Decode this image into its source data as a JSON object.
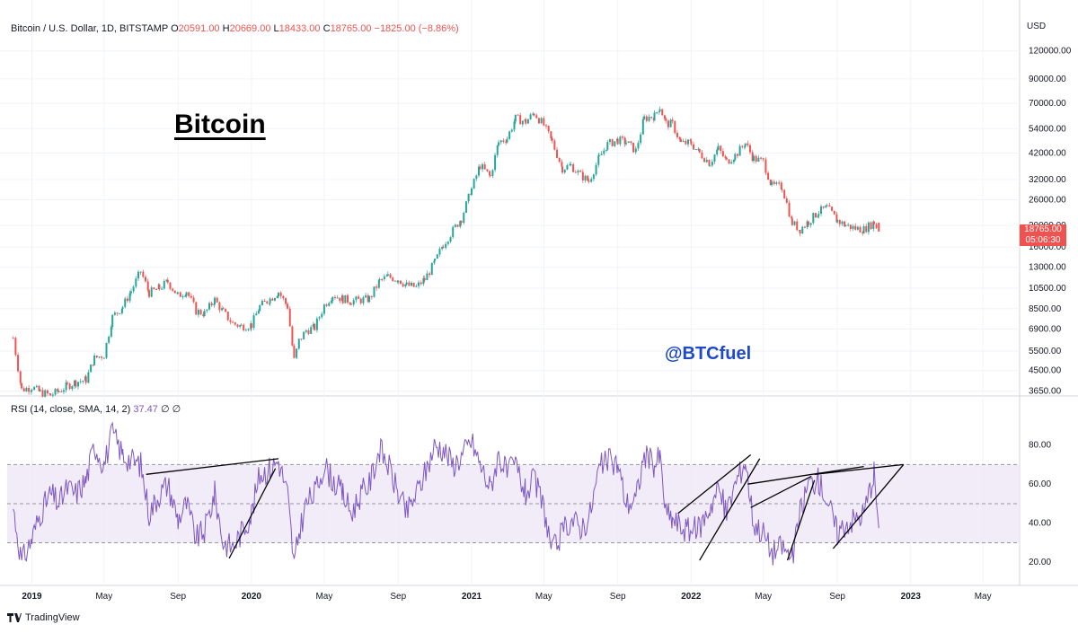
{
  "header": {
    "symbol": "Bitcoin / U.S. Dollar, 1D, BITSTAMP",
    "open_label": "O",
    "open": "20591.00",
    "high_label": "H",
    "high": "20669.00",
    "low_label": "L",
    "low": "18433.00",
    "close_label": "C",
    "close": "18765.00",
    "change": "−1825.00 (−8.86%)"
  },
  "annotations": {
    "title": "Bitcoin",
    "handle": "@BTCfuel"
  },
  "price_axis": {
    "currency": "USD",
    "ticks": [
      "120000.00",
      "90000.00",
      "70000.00",
      "54000.00",
      "42000.00",
      "32000.00",
      "26000.00",
      "20000.00",
      "16000.00",
      "13000.00",
      "10500.00",
      "8500.00",
      "6900.00",
      "5500.00",
      "4500.00",
      "3650.00"
    ],
    "last_price": "18765.00",
    "countdown": "05:06:30"
  },
  "rsi": {
    "label": "RSI (14, close, SMA, 14, 2)",
    "value": "37.47",
    "extra": "∅ ∅",
    "ticks": [
      "80.00",
      "60.00",
      "40.00",
      "20.00"
    ]
  },
  "time_axis": [
    "2019",
    "May",
    "Sep",
    "2020",
    "May",
    "Sep",
    "2021",
    "May",
    "Sep",
    "2022",
    "May",
    "Sep",
    "2023",
    "May"
  ],
  "branding": {
    "logo_text": "TradingView"
  },
  "colors": {
    "up": "#26a69a",
    "down": "#ef5350",
    "rsi_line": "#7e57c2",
    "rsi_band": "#ede7f6",
    "handle": "#1e4ac8"
  },
  "chart_data": [
    {
      "type": "candlestick",
      "scale": "log",
      "ylim": [
        3500,
        140000
      ],
      "x": [
        "2018-12-01",
        "2018-12-15",
        "2019-01-01",
        "2019-01-15",
        "2019-02-01",
        "2019-02-15",
        "2019-03-01",
        "2019-03-15",
        "2019-04-01",
        "2019-04-15",
        "2019-05-01",
        "2019-05-15",
        "2019-06-01",
        "2019-06-15",
        "2019-07-01",
        "2019-07-15",
        "2019-08-01",
        "2019-08-15",
        "2019-09-01",
        "2019-09-15",
        "2019-10-01",
        "2019-10-15",
        "2019-11-01",
        "2019-11-15",
        "2019-12-01",
        "2019-12-15",
        "2020-01-01",
        "2020-01-15",
        "2020-02-01",
        "2020-02-15",
        "2020-03-01",
        "2020-03-12",
        "2020-03-20",
        "2020-04-01",
        "2020-04-15",
        "2020-05-01",
        "2020-05-15",
        "2020-06-01",
        "2020-06-15",
        "2020-07-01",
        "2020-07-15",
        "2020-08-01",
        "2020-08-15",
        "2020-09-01",
        "2020-09-15",
        "2020-10-01",
        "2020-10-15",
        "2020-11-01",
        "2020-11-15",
        "2020-12-01",
        "2020-12-15",
        "2021-01-01",
        "2021-01-15",
        "2021-02-01",
        "2021-02-15",
        "2021-03-01",
        "2021-03-15",
        "2021-04-01",
        "2021-04-15",
        "2021-05-01",
        "2021-05-15",
        "2021-06-01",
        "2021-06-15",
        "2021-07-01",
        "2021-07-15",
        "2021-08-01",
        "2021-08-15",
        "2021-09-01",
        "2021-09-15",
        "2021-10-01",
        "2021-10-15",
        "2021-11-01",
        "2021-11-10",
        "2021-11-20",
        "2021-12-01",
        "2021-12-15",
        "2022-01-01",
        "2022-01-15",
        "2022-02-01",
        "2022-02-15",
        "2022-03-01",
        "2022-03-15",
        "2022-04-01",
        "2022-04-15",
        "2022-05-01",
        "2022-05-15",
        "2022-06-01",
        "2022-06-18",
        "2022-07-01",
        "2022-07-15",
        "2022-08-01",
        "2022-08-15",
        "2022-09-01",
        "2022-09-15",
        "2022-10-01",
        "2022-10-15",
        "2022-11-01",
        "2022-11-09"
      ],
      "y": [
        6300,
        3700,
        3800,
        3600,
        3500,
        3650,
        3850,
        4000,
        4100,
        5100,
        5300,
        7800,
        8700,
        10200,
        12500,
        10000,
        10500,
        11200,
        9700,
        10200,
        8300,
        8100,
        9300,
        8200,
        7300,
        7100,
        7200,
        8700,
        9400,
        10100,
        8700,
        5000,
        6100,
        6800,
        7000,
        8800,
        9800,
        9400,
        9200,
        9300,
        9400,
        11300,
        11800,
        11500,
        10800,
        10600,
        11500,
        13700,
        16500,
        19000,
        21500,
        29000,
        37000,
        33000,
        47000,
        49000,
        60000,
        58000,
        63500,
        56000,
        47000,
        36000,
        37000,
        33500,
        31500,
        40000,
        46000,
        48000,
        47000,
        43000,
        60000,
        61500,
        67500,
        57000,
        56500,
        46500,
        46500,
        42000,
        38000,
        44000,
        38500,
        41000,
        46500,
        39700,
        38500,
        30000,
        29800,
        20500,
        19200,
        20800,
        23000,
        24000,
        21000,
        20000,
        19400,
        19200,
        20600,
        18765
      ],
      "series": [
        {
          "name": "Bitcoin / U.S. Dollar",
          "values": "see y"
        }
      ]
    },
    {
      "type": "line",
      "title": "RSI (14, close, SMA, 14, 2)",
      "ylim": [
        10,
        95
      ],
      "bands": {
        "upper": 70,
        "middle": 50,
        "lower": 30
      },
      "x": [
        "2018-12-01",
        "2018-12-15",
        "2019-01-01",
        "2019-01-15",
        "2019-02-01",
        "2019-02-15",
        "2019-03-01",
        "2019-03-15",
        "2019-04-01",
        "2019-04-15",
        "2019-05-01",
        "2019-05-15",
        "2019-06-01",
        "2019-06-15",
        "2019-07-01",
        "2019-07-15",
        "2019-08-01",
        "2019-08-15",
        "2019-09-01",
        "2019-09-15",
        "2019-10-01",
        "2019-10-15",
        "2019-11-01",
        "2019-11-15",
        "2019-12-01",
        "2019-12-15",
        "2020-01-01",
        "2020-01-15",
        "2020-02-01",
        "2020-02-15",
        "2020-03-01",
        "2020-03-12",
        "2020-03-20",
        "2020-04-01",
        "2020-04-15",
        "2020-05-01",
        "2020-05-15",
        "2020-06-01",
        "2020-06-15",
        "2020-07-01",
        "2020-07-15",
        "2020-08-01",
        "2020-08-15",
        "2020-09-01",
        "2020-09-15",
        "2020-10-01",
        "2020-10-15",
        "2020-11-01",
        "2020-11-15",
        "2020-12-01",
        "2020-12-15",
        "2021-01-01",
        "2021-01-15",
        "2021-02-01",
        "2021-02-15",
        "2021-03-01",
        "2021-03-15",
        "2021-04-01",
        "2021-04-15",
        "2021-05-01",
        "2021-05-15",
        "2021-06-01",
        "2021-06-15",
        "2021-07-01",
        "2021-07-15",
        "2021-08-01",
        "2021-08-15",
        "2021-09-01",
        "2021-09-15",
        "2021-10-01",
        "2021-10-15",
        "2021-11-01",
        "2021-11-10",
        "2021-11-20",
        "2021-12-01",
        "2021-12-15",
        "2022-01-01",
        "2022-01-15",
        "2022-02-01",
        "2022-02-15",
        "2022-03-01",
        "2022-03-15",
        "2022-04-01",
        "2022-04-15",
        "2022-05-01",
        "2022-05-15",
        "2022-06-01",
        "2022-06-18",
        "2022-07-01",
        "2022-07-15",
        "2022-08-01",
        "2022-08-15",
        "2022-09-01",
        "2022-09-15",
        "2022-10-01",
        "2022-10-15",
        "2022-11-01",
        "2022-11-09"
      ],
      "y": [
        48,
        20,
        32,
        45,
        55,
        50,
        58,
        55,
        62,
        80,
        70,
        86,
        75,
        72,
        70,
        45,
        55,
        60,
        42,
        50,
        32,
        36,
        55,
        30,
        28,
        35,
        45,
        65,
        68,
        72,
        55,
        18,
        35,
        50,
        55,
        70,
        62,
        55,
        45,
        55,
        60,
        78,
        70,
        55,
        45,
        55,
        65,
        80,
        78,
        70,
        74,
        82,
        70,
        58,
        75,
        65,
        70,
        55,
        62,
        48,
        25,
        35,
        42,
        38,
        42,
        68,
        72,
        70,
        50,
        52,
        75,
        70,
        74,
        45,
        42,
        38,
        36,
        38,
        48,
        58,
        45,
        60,
        72,
        40,
        35,
        25,
        28,
        22,
        45,
        60,
        62,
        52,
        35,
        40,
        42,
        45,
        66,
        37.47
      ]
    }
  ]
}
